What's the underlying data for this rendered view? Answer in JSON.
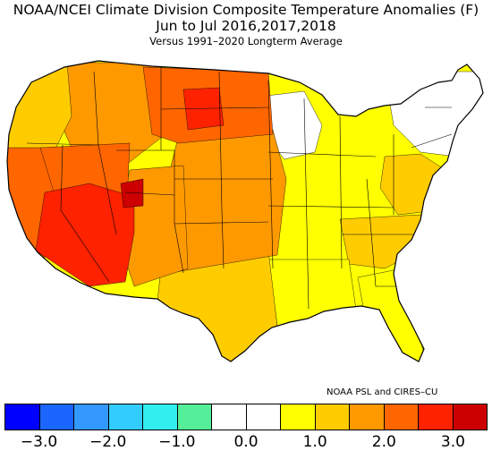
{
  "titles": {
    "line1": "NOAA/NCEI Climate Division Composite Temperature Anomalies (F)",
    "line2": "Jun to Jul  2016,2017,2018",
    "line3": "Versus 1991–2020 Longterm Average"
  },
  "credit": "NOAA PSL and CIRES–CU",
  "legend": {
    "colors": [
      "#0000ff",
      "#1a66ff",
      "#3399ff",
      "#33ccff",
      "#33eeee",
      "#55ee99",
      "#ffffff",
      "#ffffff",
      "#ffff00",
      "#ffcc00",
      "#ff9900",
      "#ff6600",
      "#ff2200",
      "#cc0000"
    ],
    "tick_labels": [
      "−3.0",
      "−2.0",
      "−1.0",
      "0.0",
      "1.0",
      "2.0",
      "3.0"
    ]
  },
  "regions": [
    {
      "name": "pacific-northwest",
      "color": "#ffcc00"
    },
    {
      "name": "california-coast",
      "color": "#ff6600"
    },
    {
      "name": "desert-southwest",
      "color": "#ff2200"
    },
    {
      "name": "great-basin",
      "color": "#ff6600"
    },
    {
      "name": "utah-core",
      "color": "#cc0000"
    },
    {
      "name": "northern-rockies",
      "color": "#ff9900"
    },
    {
      "name": "northern-plains",
      "color": "#ff6600"
    },
    {
      "name": "dakotas-core",
      "color": "#ff2200"
    },
    {
      "name": "southern-rockies",
      "color": "#ff9900"
    },
    {
      "name": "central-plains",
      "color": "#ff9900"
    },
    {
      "name": "texas",
      "color": "#ffcc00"
    },
    {
      "name": "gulf-coast",
      "color": "#ffff00"
    },
    {
      "name": "midwest-neutral",
      "color": "#ffffff"
    },
    {
      "name": "ohio-valley",
      "color": "#ffff00"
    },
    {
      "name": "mid-atlantic",
      "color": "#ffcc00"
    },
    {
      "name": "southeast",
      "color": "#ffcc00"
    },
    {
      "name": "florida",
      "color": "#ffff00"
    },
    {
      "name": "new-england",
      "color": "#ffffff"
    }
  ]
}
